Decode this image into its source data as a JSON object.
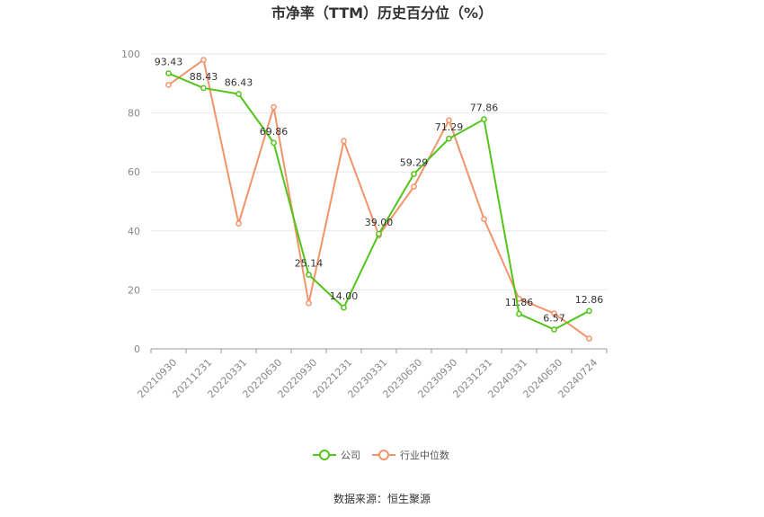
{
  "chart_data": {
    "type": "line",
    "title": "市净率（TTM）历史百分位（%）",
    "categories": [
      "20210930",
      "20211231",
      "20220331",
      "20220630",
      "20220930",
      "20221231",
      "20230331",
      "20230630",
      "20230930",
      "20231231",
      "20240331",
      "20240630",
      "20240724"
    ],
    "series": [
      {
        "name": "公司",
        "color": "#52c41a",
        "values": [
          93.43,
          88.43,
          86.43,
          69.86,
          25.14,
          14.0,
          39.0,
          59.29,
          71.29,
          77.86,
          11.86,
          6.57,
          12.86
        ],
        "labels": [
          "93.43",
          "88.43",
          "86.43",
          "69.86",
          "25.14",
          "14.00",
          "39.00",
          "59.29",
          "71.29",
          "77.86",
          "11.86",
          "6.57",
          "12.86"
        ]
      },
      {
        "name": "行业中位数",
        "color": "#f4936a",
        "values": [
          89.5,
          98.0,
          42.5,
          82.0,
          15.5,
          70.5,
          38.5,
          55.0,
          77.5,
          44.0,
          17.0,
          12.0,
          3.5
        ]
      }
    ],
    "ylim": [
      0,
      100
    ],
    "yticks": [
      "0",
      "20",
      "40",
      "60",
      "80",
      "100"
    ],
    "grid": true,
    "legend": "bottom"
  },
  "source": "数据来源：恒生聚源"
}
